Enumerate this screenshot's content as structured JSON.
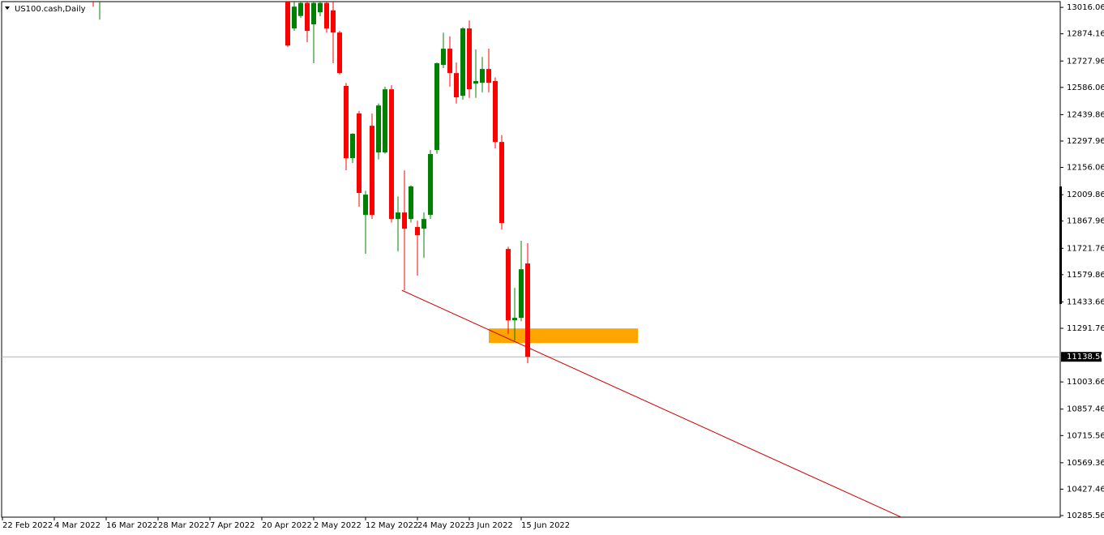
{
  "chart_data": {
    "type": "candlestick",
    "title": "US100.cash,Daily",
    "up_color": "#008000",
    "down_color": "#ff0000",
    "categories": [
      "22 Feb 2022",
      null,
      null,
      null,
      null,
      null,
      null,
      null,
      "4 Mar 2022",
      null,
      null,
      null,
      null,
      null,
      null,
      null,
      "16 Mar 2022",
      null,
      null,
      null,
      null,
      null,
      null,
      null,
      "28 Mar 2022",
      null,
      null,
      null,
      null,
      null,
      null,
      null,
      "7 Apr 2022",
      null,
      null,
      null,
      null,
      null,
      null,
      null,
      "20 Apr 2022",
      null,
      null,
      null,
      null,
      null,
      null,
      null,
      "2 May 2022",
      null,
      null,
      null,
      null,
      null,
      null,
      null,
      "12 May 2022",
      null,
      null,
      null,
      null,
      null,
      null,
      null,
      "24 May 2022",
      null,
      null,
      null,
      null,
      null,
      null,
      null,
      "3 Jun 2022",
      null,
      null,
      null,
      null,
      null,
      null,
      null,
      "15 Jun 2022",
      null
    ],
    "open": [
      null,
      null,
      null,
      null,
      null,
      null,
      null,
      null,
      null,
      null,
      null,
      null,
      null,
      null,
      13150,
      13080,
      null,
      null,
      null,
      null,
      null,
      null,
      null,
      null,
      null,
      null,
      null,
      null,
      null,
      null,
      null,
      null,
      null,
      null,
      null,
      null,
      null,
      null,
      null,
      null,
      null,
      null,
      null,
      null,
      13060,
      12903,
      12970,
      13040,
      12925,
      12990,
      13040,
      13000,
      12881,
      12594,
      12206,
      12446,
      11901,
      12380,
      12237,
      12237,
      12576,
      11879,
      11914,
      11879,
      11836,
      11827,
      11901,
      12250,
      12707,
      12794,
      12663,
      12541,
      12903,
      12607,
      12611,
      12685,
      12620,
      12293,
      11718,
      11335,
      11348,
      11640
    ],
    "high": [
      null,
      null,
      null,
      null,
      null,
      null,
      null,
      null,
      null,
      null,
      null,
      null,
      null,
      null,
      13200,
      13150,
      null,
      null,
      null,
      null,
      null,
      null,
      null,
      null,
      null,
      null,
      null,
      null,
      null,
      null,
      null,
      null,
      null,
      null,
      null,
      null,
      null,
      null,
      null,
      null,
      null,
      null,
      null,
      null,
      13080,
      13046,
      13060,
      13070,
      13060,
      13060,
      13070,
      13050,
      12890,
      12610,
      12340,
      12460,
      12030,
      12445,
      12500,
      12590,
      12598,
      12000,
      12140,
      12060,
      11870,
      11914,
      12250,
      12720,
      12880,
      12860,
      12720,
      12910,
      12946,
      12790,
      12750,
      12794,
      12640,
      12330,
      11730,
      11509,
      11762,
      11749
    ],
    "low": [
      null,
      null,
      null,
      null,
      null,
      null,
      null,
      null,
      null,
      null,
      null,
      null,
      null,
      null,
      13020,
      12950,
      null,
      null,
      null,
      null,
      null,
      null,
      null,
      null,
      null,
      null,
      null,
      null,
      null,
      null,
      null,
      null,
      null,
      null,
      null,
      null,
      null,
      null,
      null,
      null,
      null,
      null,
      null,
      null,
      12803,
      12890,
      12960,
      12829,
      12716,
      12968,
      12880,
      12716,
      12655,
      12141,
      12180,
      11945,
      11692,
      11880,
      12200,
      12230,
      11860,
      11705,
      11496,
      11860,
      11575,
      11670,
      11880,
      12230,
      12690,
      12590,
      12500,
      12520,
      12530,
      12530,
      12560,
      12560,
      12258,
      11823,
      11261,
      11226,
      11330,
      11104
    ],
    "close": [
      null,
      null,
      null,
      null,
      null,
      null,
      null,
      null,
      null,
      null,
      null,
      null,
      null,
      null,
      13100,
      13120,
      null,
      null,
      null,
      null,
      null,
      null,
      null,
      null,
      null,
      null,
      null,
      null,
      null,
      null,
      null,
      null,
      null,
      null,
      null,
      null,
      null,
      null,
      null,
      null,
      null,
      null,
      null,
      null,
      12811,
      13020,
      13040,
      12890,
      13040,
      13040,
      12903,
      12881,
      12663,
      12206,
      12337,
      12019,
      12010,
      11901,
      12489,
      12576,
      11879,
      11914,
      11827,
      12054,
      11792,
      11879,
      12228,
      12716,
      12794,
      12663,
      12533,
      12903,
      12576,
      12620,
      12685,
      12611,
      12293,
      11858,
      11335,
      11348,
      11609,
      11138.5
    ],
    "ylim": [
      10277,
      13047
    ],
    "yticks": [
      13016.06,
      12874.16,
      12727.96,
      12586.06,
      12439.86,
      12297.96,
      12156.06,
      12009.86,
      11867.96,
      11721.76,
      11579.86,
      11433.66,
      11291.76,
      11003.66,
      10857.46,
      10715.56,
      10569.36,
      10427.46,
      10285.56
    ],
    "last_price": {
      "value": 11138.5,
      "label": "11138.50"
    },
    "zone": {
      "from_index": 75,
      "to_index": 98,
      "low": 11213,
      "high": 11291,
      "color": "#ffa500"
    },
    "trendline": {
      "start": [
        61.6,
        11496
      ],
      "end": [
        138.6,
        10277
      ],
      "color": "#d00000"
    }
  }
}
